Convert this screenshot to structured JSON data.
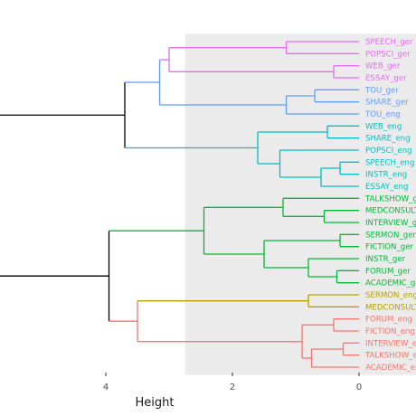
{
  "chart_data": {
    "type": "dendrogram",
    "orientation": "horizontal",
    "xlabel": "Height",
    "x_ticks": [
      4,
      2,
      0
    ],
    "x_domain": [
      8.15,
      0
    ],
    "ylim": [
      0,
      29
    ],
    "grid": false,
    "root_height": 7.5,
    "leaves": [
      {
        "label": "SPEECH_ger",
        "cluster": 0
      },
      {
        "label": "POPSCI_ger",
        "cluster": 0
      },
      {
        "label": "WEB_ger",
        "cluster": 0
      },
      {
        "label": "ESSAY_ger",
        "cluster": 0
      },
      {
        "label": "TOU_ger",
        "cluster": 1
      },
      {
        "label": "SHARE_ger",
        "cluster": 1
      },
      {
        "label": "TOU_eng",
        "cluster": 1
      },
      {
        "label": "WEB_eng",
        "cluster": 2
      },
      {
        "label": "SHARE_eng",
        "cluster": 2
      },
      {
        "label": "POPSCI_eng",
        "cluster": 2
      },
      {
        "label": "SPEECH_eng",
        "cluster": 2
      },
      {
        "label": "INSTR_eng",
        "cluster": 2
      },
      {
        "label": "ESSAY_eng",
        "cluster": 2
      },
      {
        "label": "TALKSHOW_ger",
        "cluster": 3
      },
      {
        "label": "MEDCONSULT_ger",
        "cluster": 3
      },
      {
        "label": "INTERVIEW_ger",
        "cluster": 3
      },
      {
        "label": "SERMON_ger",
        "cluster": 3
      },
      {
        "label": "FICTION_ger",
        "cluster": 3
      },
      {
        "label": "INSTR_ger",
        "cluster": 3
      },
      {
        "label": "FORUM_ger",
        "cluster": 3
      },
      {
        "label": "ACADEMIC_ger",
        "cluster": 3
      },
      {
        "label": "SERMON_eng",
        "cluster": 4
      },
      {
        "label": "MEDCONSULT_eng",
        "cluster": 4
      },
      {
        "label": "FORUM_eng",
        "cluster": 5
      },
      {
        "label": "FICTION_eng",
        "cluster": 5
      },
      {
        "label": "INTERVIEW_eng",
        "cluster": 5
      },
      {
        "label": "TALKSHOW_eng",
        "cluster": 5
      },
      {
        "label": "ACADEMIC_eng",
        "cluster": 5
      }
    ],
    "clusters": [
      {
        "color": "#e76bf3",
        "first_leaf": 1,
        "last_leaf": 4
      },
      {
        "color": "#619cff",
        "first_leaf": 5,
        "last_leaf": 7
      },
      {
        "color": "#00bfc4",
        "first_leaf": 8,
        "last_leaf": 13
      },
      {
        "color": "#00ba38",
        "first_leaf": 14,
        "last_leaf": 21
      },
      {
        "color": "#b79f00",
        "first_leaf": 22,
        "last_leaf": 23
      },
      {
        "color": "#f8766d",
        "first_leaf": 24,
        "last_leaf": 28
      }
    ],
    "cluster_box_height": 2.75,
    "box_fill": "#ebebeb",
    "branch_color": "#000000",
    "merges": [
      {
        "id": "a",
        "left": 1,
        "right": 2,
        "height": 1.15,
        "color": "#e76bf3"
      },
      {
        "id": "b",
        "left": 3,
        "right": 4,
        "height": 0.4,
        "color": "#e76bf3"
      },
      {
        "id": "c",
        "left": "a",
        "right": "b",
        "height": 3.0,
        "color": "#e76bf3"
      },
      {
        "id": "d",
        "left": 5,
        "right": 6,
        "height": 0.7,
        "color": "#619cff"
      },
      {
        "id": "e",
        "left": "d",
        "right": 7,
        "height": 1.15,
        "color": "#619cff"
      },
      {
        "id": "f",
        "left": "c",
        "right": "e",
        "height": 3.15,
        "color": "#619cff"
      },
      {
        "id": "g",
        "left": 11,
        "right": 12,
        "height": 0.3,
        "color": "#00bfc4"
      },
      {
        "id": "h",
        "left": "g",
        "right": 13,
        "height": 0.6,
        "color": "#00bfc4"
      },
      {
        "id": "i",
        "left": 10,
        "right": "h",
        "height": 1.25,
        "color": "#00bfc4"
      },
      {
        "id": "j",
        "left": 8,
        "right": 9,
        "height": 0.5,
        "color": "#00bfc4"
      },
      {
        "id": "k",
        "left": "j",
        "right": "i",
        "height": 1.6,
        "color": "#00bfc4"
      },
      {
        "id": "l",
        "left": "f",
        "right": "k",
        "height": 3.7,
        "color": "#000000"
      },
      {
        "id": "m",
        "left": 15,
        "right": 16,
        "height": 0.55,
        "color": "#00ba38"
      },
      {
        "id": "n",
        "left": 14,
        "right": "m",
        "height": 1.2,
        "color": "#00ba38"
      },
      {
        "id": "o",
        "left": 17,
        "right": 18,
        "height": 0.3,
        "color": "#00ba38"
      },
      {
        "id": "p",
        "left": 20,
        "right": 21,
        "height": 0.35,
        "color": "#00ba38"
      },
      {
        "id": "q",
        "left": 19,
        "right": "p",
        "height": 0.8,
        "color": "#00ba38"
      },
      {
        "id": "r",
        "left": "o",
        "right": "q",
        "height": 1.5,
        "color": "#00ba38"
      },
      {
        "id": "s",
        "left": "n",
        "right": "r",
        "height": 2.45,
        "color": "#00ba38"
      },
      {
        "id": "t",
        "left": 22,
        "right": 23,
        "height": 0.8,
        "color": "#b79f00"
      },
      {
        "id": "u",
        "left": 26,
        "right": 27,
        "height": 0.25,
        "color": "#f8766d"
      },
      {
        "id": "v",
        "left": "u",
        "right": 28,
        "height": 0.75,
        "color": "#f8766d"
      },
      {
        "id": "w",
        "left": 24,
        "right": 25,
        "height": 0.4,
        "color": "#f8766d"
      },
      {
        "id": "x",
        "left": "w",
        "right": "v",
        "height": 0.9,
        "color": "#f8766d"
      },
      {
        "id": "y",
        "left": "t",
        "right": "x",
        "height": 3.5,
        "color": "#f8766d"
      },
      {
        "id": "z",
        "left": "s",
        "right": "y",
        "height": 3.95,
        "color": "#000000"
      },
      {
        "id": "root",
        "left": "l",
        "right": "z",
        "height": 7.5,
        "color": "#000000"
      }
    ]
  }
}
